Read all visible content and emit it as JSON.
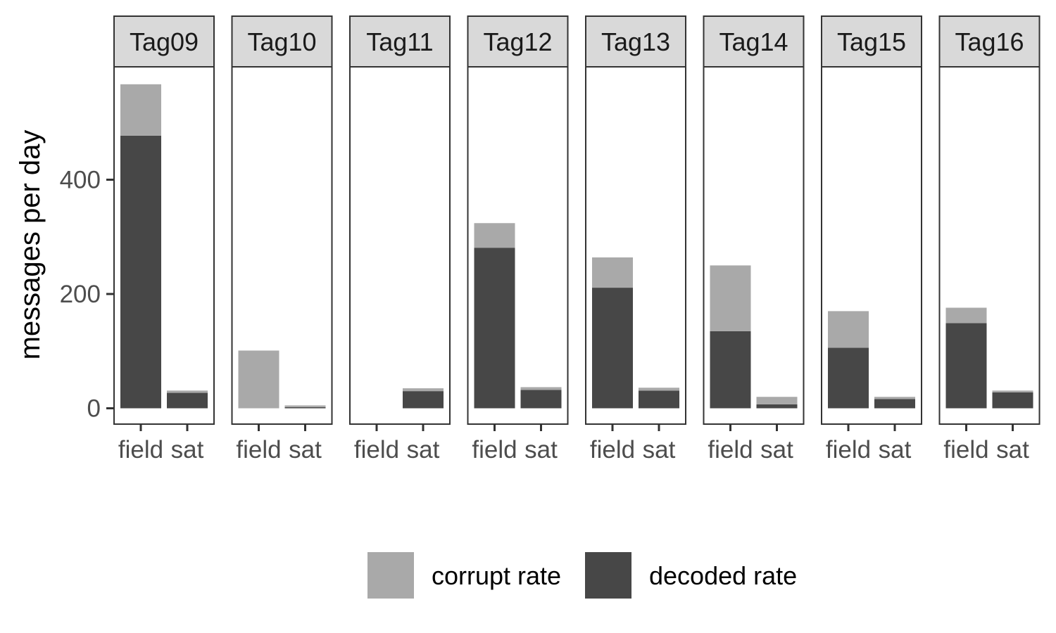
{
  "chart_data": {
    "type": "bar",
    "stacked": true,
    "ylabel": "messages per day",
    "ylim": [
      0,
      600
    ],
    "y_ticks": [
      0,
      200,
      400
    ],
    "grid": false,
    "legend_position": "bottom",
    "colors": {
      "corrupt rate": "#a9a9a9",
      "decoded rate": "#474747"
    },
    "categories": [
      "field",
      "sat"
    ],
    "legend": [
      {
        "name": "corrupt rate",
        "color": "#a9a9a9"
      },
      {
        "name": "decoded rate",
        "color": "#474747"
      }
    ],
    "facets": [
      {
        "label": "Tag09",
        "bars": [
          {
            "x": "field",
            "decoded": 477,
            "corrupt": 90
          },
          {
            "x": "sat",
            "decoded": 27,
            "corrupt": 4
          }
        ]
      },
      {
        "label": "Tag10",
        "bars": [
          {
            "x": "field",
            "decoded": 0,
            "corrupt": 101
          },
          {
            "x": "sat",
            "decoded": 2,
            "corrupt": 3
          }
        ]
      },
      {
        "label": "Tag11",
        "bars": [
          {
            "x": "field",
            "decoded": 0,
            "corrupt": 0
          },
          {
            "x": "sat",
            "decoded": 30,
            "corrupt": 5
          }
        ]
      },
      {
        "label": "Tag12",
        "bars": [
          {
            "x": "field",
            "decoded": 281,
            "corrupt": 43
          },
          {
            "x": "sat",
            "decoded": 32,
            "corrupt": 5
          }
        ]
      },
      {
        "label": "Tag13",
        "bars": [
          {
            "x": "field",
            "decoded": 211,
            "corrupt": 53
          },
          {
            "x": "sat",
            "decoded": 31,
            "corrupt": 5
          }
        ]
      },
      {
        "label": "Tag14",
        "bars": [
          {
            "x": "field",
            "decoded": 135,
            "corrupt": 115
          },
          {
            "x": "sat",
            "decoded": 7,
            "corrupt": 13
          }
        ]
      },
      {
        "label": "Tag15",
        "bars": [
          {
            "x": "field",
            "decoded": 106,
            "corrupt": 64
          },
          {
            "x": "sat",
            "decoded": 16,
            "corrupt": 4
          }
        ]
      },
      {
        "label": "Tag16",
        "bars": [
          {
            "x": "field",
            "decoded": 149,
            "corrupt": 27
          },
          {
            "x": "sat",
            "decoded": 28,
            "corrupt": 3
          }
        ]
      }
    ]
  }
}
